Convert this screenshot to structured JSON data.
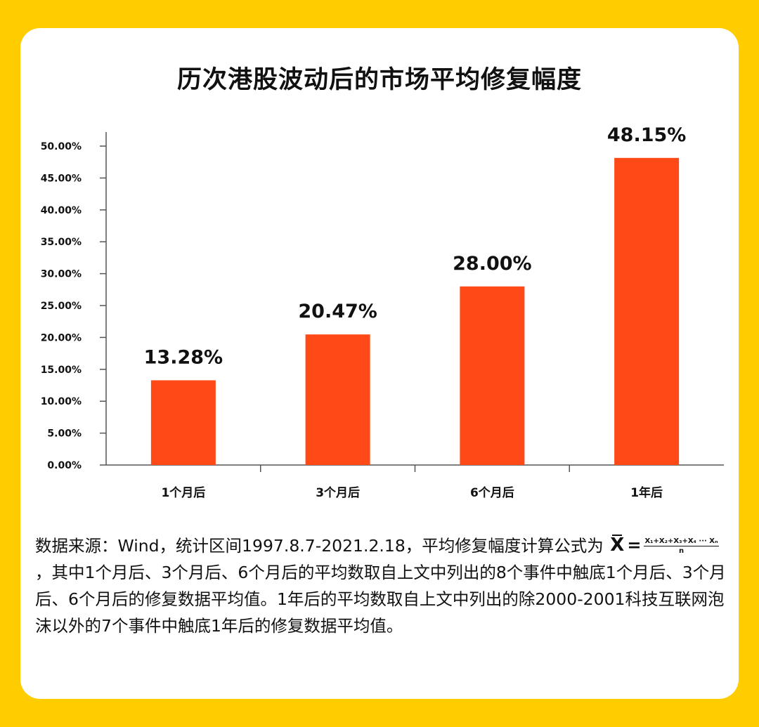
{
  "colors": {
    "background": "#ffcc00",
    "card": "#ffffff",
    "bar": "#ff4a17",
    "text": "#111111"
  },
  "chart_data": {
    "type": "bar",
    "title": "历次港股波动后的市场平均修复幅度",
    "categories": [
      "1个月后",
      "3个月后",
      "6个月后",
      "1年后"
    ],
    "values": [
      13.28,
      20.47,
      28.0,
      48.15
    ],
    "value_labels": [
      "13.28%",
      "20.47%",
      "28.00%",
      "48.15%"
    ],
    "y_ticks": [
      "0.00%",
      "5.00%",
      "10.00%",
      "15.00%",
      "20.00%",
      "25.00%",
      "30.00%",
      "35.00%",
      "40.00%",
      "45.00%",
      "50.00%"
    ],
    "ylim": [
      0,
      50
    ],
    "xlabel": "",
    "ylabel": "",
    "grid": false,
    "legend": "none"
  },
  "note": {
    "part1": "数据来源：Wind，统计区间1997.8.7-2021.2.18，平均修复幅度计算公式为",
    "formula_symbol": "X",
    "formula_equals": "=",
    "formula_numerator": "X₁+X₂+X₃+X₄ ··· Xₙ",
    "formula_denominator": "n",
    "part2": "，其中1个月后、3个月后、6个月后的平均数取自上文中列出的8个事件中触底1个月后、3个月后、6个月后的修复数据平均值。1年后的平均数取自上文中列出的除2000-2001科技互联网泡沫以外的7个事件中触底1年后的修复数据平均值。"
  }
}
